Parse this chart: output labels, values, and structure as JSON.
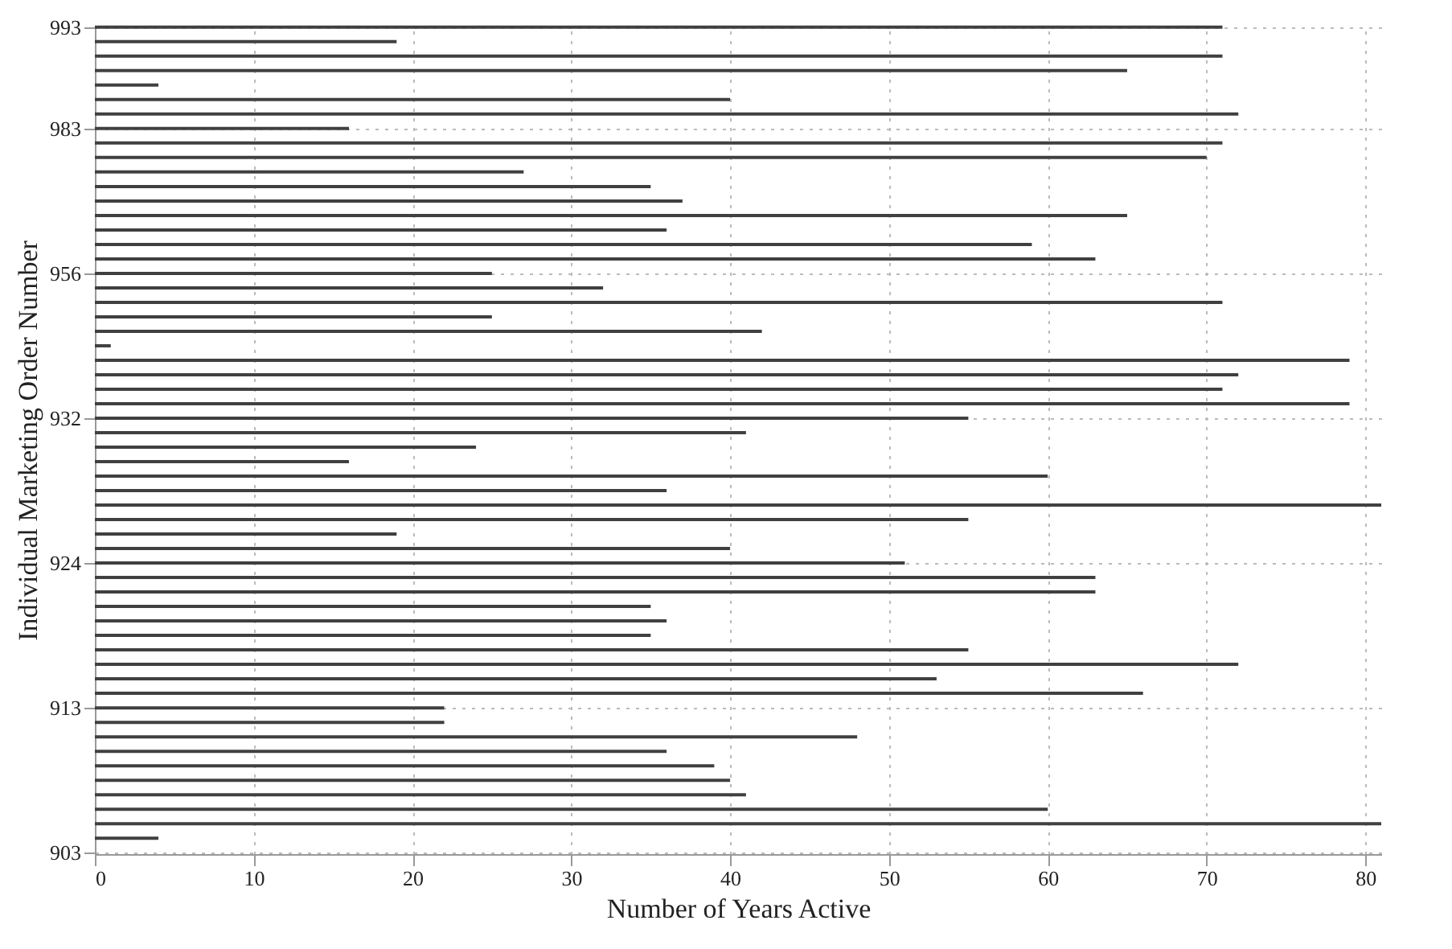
{
  "chart_data": {
    "type": "bar",
    "orientation": "horizontal",
    "xlabel": "Number of Years Active",
    "ylabel": "Individual Marketing Order Number",
    "categories": [
      "993",
      null,
      null,
      null,
      null,
      null,
      null,
      "983",
      null,
      null,
      null,
      null,
      null,
      null,
      null,
      null,
      null,
      "956",
      null,
      null,
      null,
      null,
      null,
      null,
      null,
      null,
      null,
      "932",
      null,
      null,
      null,
      null,
      null,
      null,
      null,
      null,
      null,
      "924",
      null,
      null,
      null,
      null,
      null,
      null,
      null,
      null,
      null,
      "913",
      null,
      null,
      null,
      null,
      null,
      null,
      null,
      null,
      null,
      "903"
    ],
    "values": [
      71,
      19,
      71,
      65,
      4,
      40,
      72,
      16,
      71,
      70,
      27,
      35,
      37,
      65,
      36,
      59,
      63,
      25,
      32,
      71,
      25,
      42,
      1,
      79,
      72,
      71,
      79,
      55,
      41,
      24,
      16,
      60,
      36,
      81,
      55,
      19,
      40,
      51,
      63,
      63,
      35,
      36,
      35,
      55,
      72,
      53,
      66,
      22,
      22,
      48,
      36,
      39,
      40,
      41,
      60,
      81,
      4,
      null
    ],
    "color": "#404040",
    "xlim": [
      0,
      81
    ],
    "xticks": [
      0,
      10,
      20,
      30,
      40,
      50,
      60,
      70,
      80
    ],
    "grid": true
  }
}
